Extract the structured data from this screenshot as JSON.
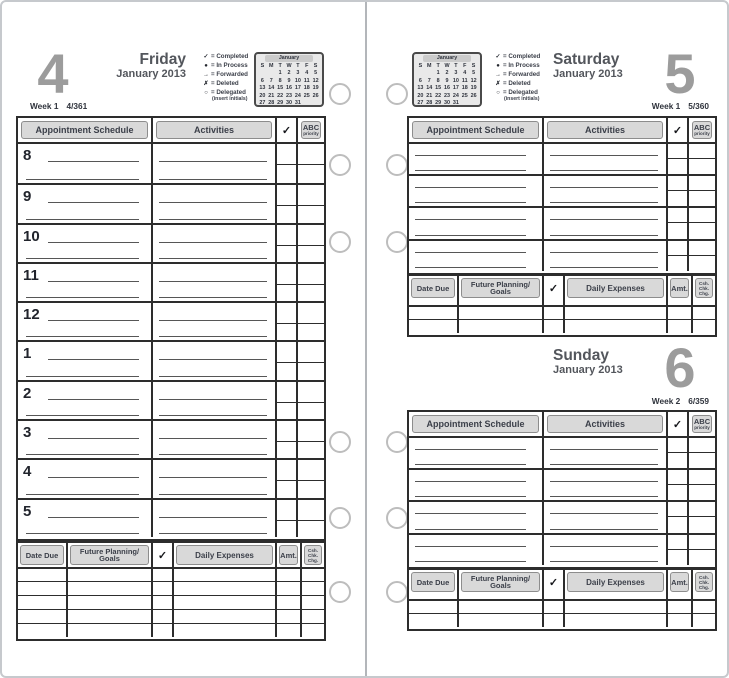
{
  "days": {
    "friday": {
      "number": "4",
      "name": "Friday",
      "month_year": "January 2013",
      "week_label": "Week 1",
      "day_of_year": "4/361"
    },
    "saturday": {
      "number": "5",
      "name": "Saturday",
      "month_year": "January 2013",
      "week_label": "Week 1",
      "day_of_year": "5/360"
    },
    "sunday": {
      "number": "6",
      "name": "Sunday",
      "month_year": "January 2013",
      "week_label": "Week 2",
      "day_of_year": "6/359"
    }
  },
  "legend": {
    "items": [
      {
        "symbol": "✓",
        "text": "= Completed"
      },
      {
        "symbol": "●",
        "text": "= In Process"
      },
      {
        "symbol": "→",
        "text": "= Forwarded"
      },
      {
        "symbol": "✗",
        "text": "= Deleted"
      },
      {
        "symbol": "○",
        "text": "= Delegated",
        "note": "(insert initials)"
      }
    ]
  },
  "mini_calendar": {
    "title": "January",
    "day_headers": [
      "S",
      "M",
      "T",
      "W",
      "T",
      "F",
      "S"
    ],
    "weeks": [
      [
        "",
        "",
        "1",
        "2",
        "3",
        "4",
        "5"
      ],
      [
        "6",
        "7",
        "8",
        "9",
        "10",
        "11",
        "12"
      ],
      [
        "13",
        "14",
        "15",
        "16",
        "17",
        "18",
        "19"
      ],
      [
        "20",
        "21",
        "22",
        "23",
        "24",
        "25",
        "26"
      ],
      [
        "27",
        "28",
        "29",
        "30",
        "31",
        "",
        ""
      ]
    ]
  },
  "schedule_table": {
    "appointment_header": "Appointment Schedule",
    "activities_header": "Activities",
    "check_header": "✓",
    "abc_header": "ABC",
    "abc_subheader": "priority",
    "hours": [
      "8",
      "9",
      "10",
      "11",
      "12",
      "1",
      "2",
      "3",
      "4",
      "5"
    ],
    "weekend_row_count": 8
  },
  "bottom_table": {
    "date_due": "Date Due",
    "future_planning_line1": "Future Planning/",
    "future_planning_line2": "Goals",
    "check": "✓",
    "daily_expenses": "Daily Expenses",
    "amount": "Amt.",
    "cash": "Csh.",
    "check_abbr": "Chk.",
    "charge": "Chg.",
    "friday_row_count": 5,
    "weekend_row_count": 2
  },
  "colors": {
    "accent_gray": "#9c9c9c",
    "border_dark": "#2d2d2d",
    "pill_gray": "#d9d9d9"
  }
}
